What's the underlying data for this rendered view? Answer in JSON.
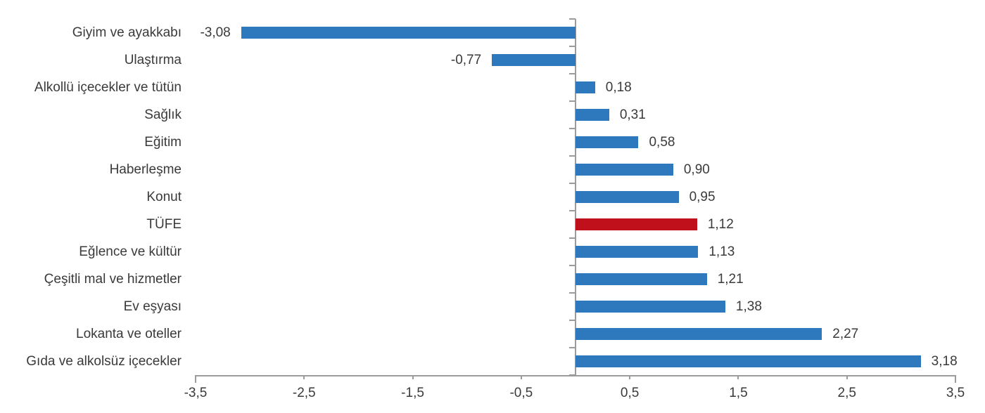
{
  "chart_data": {
    "type": "bar",
    "orientation": "horizontal",
    "title": "",
    "xlabel": "",
    "ylabel": "",
    "grid": false,
    "legend": "none",
    "xlim": [
      -3.5,
      3.5
    ],
    "x_ticks": [
      -3.5,
      -2.5,
      -1.5,
      -0.5,
      0.5,
      1.5,
      2.5,
      3.5
    ],
    "x_tick_labels": [
      "-3,5",
      "-2,5",
      "-1,5",
      "-0,5",
      "0,5",
      "1,5",
      "2,5",
      "3,5"
    ],
    "categories": [
      "Giyim ve ayakkabı",
      "Ulaştırma",
      "Alkollü içecekler ve tütün",
      "Sağlık",
      "Eğitim",
      "Haberleşme",
      "Konut",
      "TÜFE",
      "Eğlence ve kültür",
      "Çeşitli mal ve hizmetler",
      "Ev eşyası",
      "Lokanta ve oteller",
      "Gıda ve alkolsüz içecekler"
    ],
    "values": [
      -3.08,
      -0.77,
      0.18,
      0.31,
      0.58,
      0.9,
      0.95,
      1.12,
      1.13,
      1.21,
      1.38,
      2.27,
      3.18
    ],
    "value_labels": [
      "-3,08",
      "-0,77",
      "0,18",
      "0,31",
      "0,58",
      "0,90",
      "0,95",
      "1,12",
      "1,13",
      "1,21",
      "1,38",
      "2,27",
      "3,18"
    ],
    "highlight_category": "TÜFE",
    "highlight_index": 7,
    "colors": {
      "bar": "#2e79bd",
      "highlight": "#c0101c",
      "axis": "#9b9b9b",
      "text": "#3a3a3a"
    }
  }
}
